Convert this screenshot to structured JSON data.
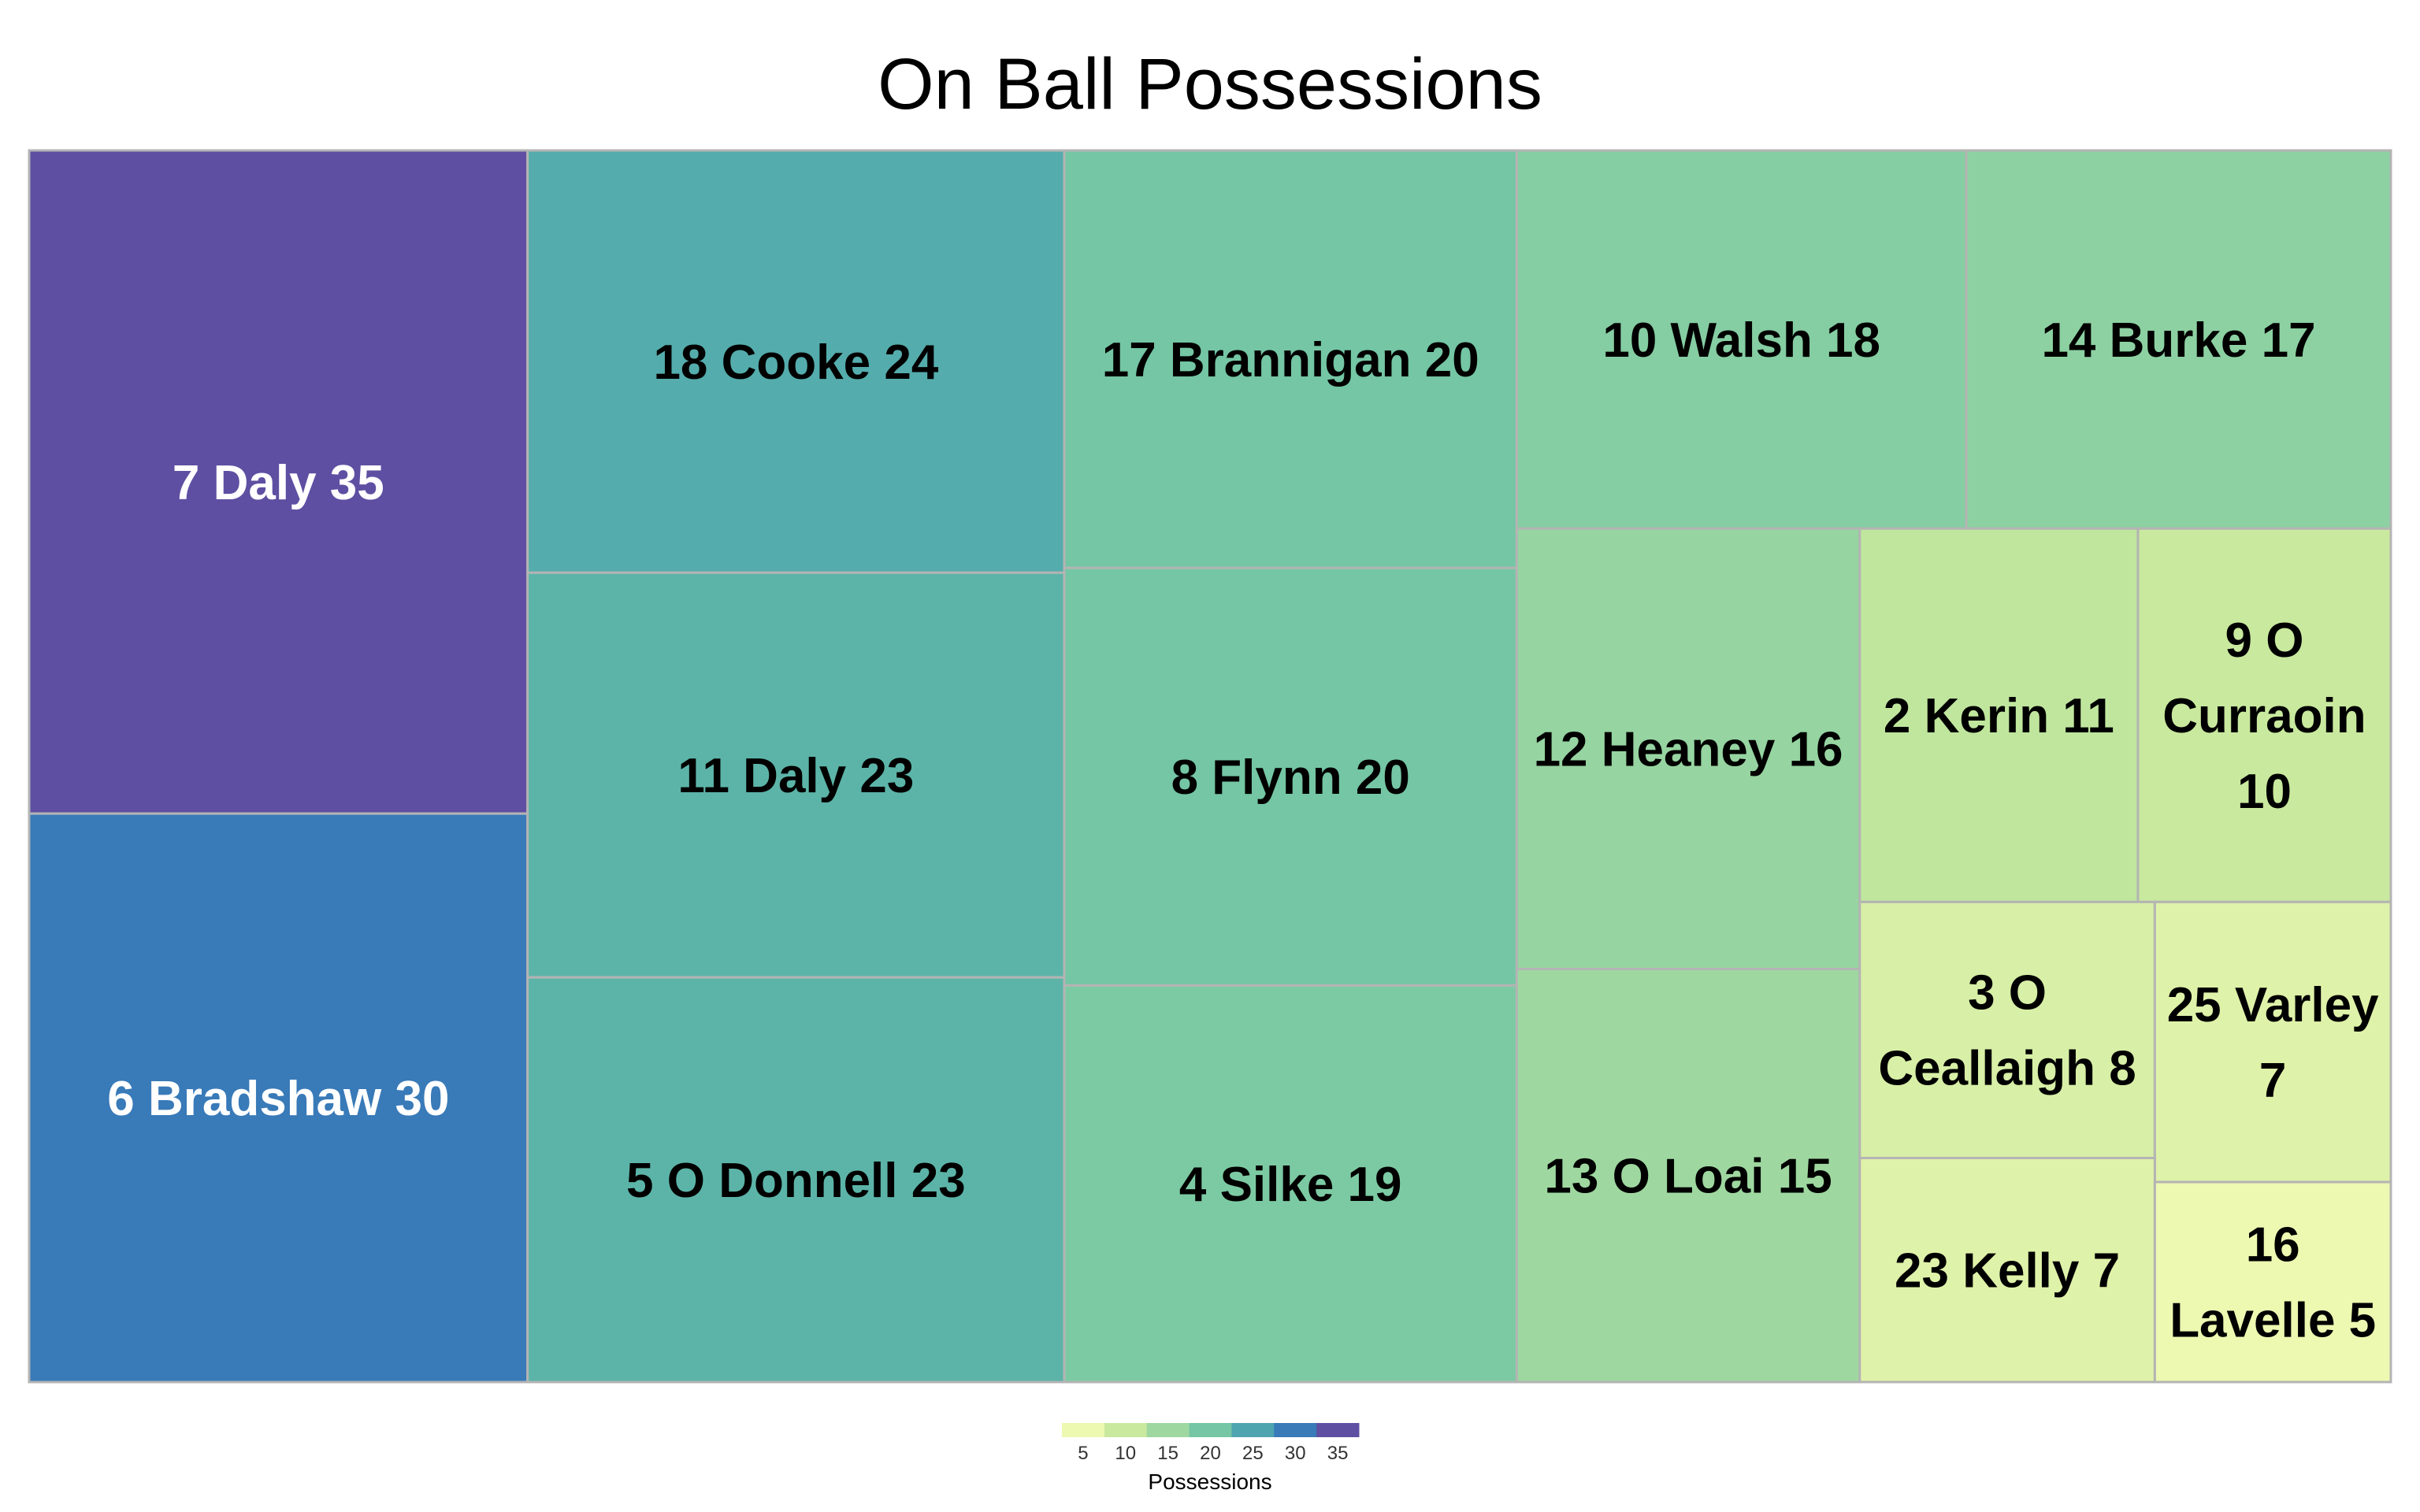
{
  "chart_data": {
    "type": "treemap",
    "title": "On Ball Possessions",
    "legend_title": "Possessions",
    "legend_ticks": [
      5,
      10,
      15,
      20,
      25,
      30,
      35
    ],
    "legend_position": "bottom-center",
    "cells": [
      {
        "label": "7 Daly 35",
        "value": 35
      },
      {
        "label": "6 Bradshaw 30",
        "value": 30
      },
      {
        "label": "18 Cooke 24",
        "value": 24
      },
      {
        "label": "11 Daly 23",
        "value": 23
      },
      {
        "label": "5 O Donnell 23",
        "value": 23
      },
      {
        "label": "17 Brannigan 20",
        "value": 20
      },
      {
        "label": "8 Flynn 20",
        "value": 20
      },
      {
        "label": "4 Silke 19",
        "value": 19
      },
      {
        "label": "10 Walsh 18",
        "value": 18
      },
      {
        "label": "14 Burke 17",
        "value": 17
      },
      {
        "label": "12 Heaney 16",
        "value": 16
      },
      {
        "label": "13 O Loai 15",
        "value": 15
      },
      {
        "label": "2 Kerin 11",
        "value": 11
      },
      {
        "label": "9 O Curraoin 10",
        "value": 10
      },
      {
        "label": "3 O Ceallaigh 8",
        "value": 8
      },
      {
        "label": "25 Varley 7",
        "value": 7
      },
      {
        "label": "23 Kelly 7",
        "value": 7
      },
      {
        "label": "16 Lavelle 5",
        "value": 5
      }
    ]
  }
}
